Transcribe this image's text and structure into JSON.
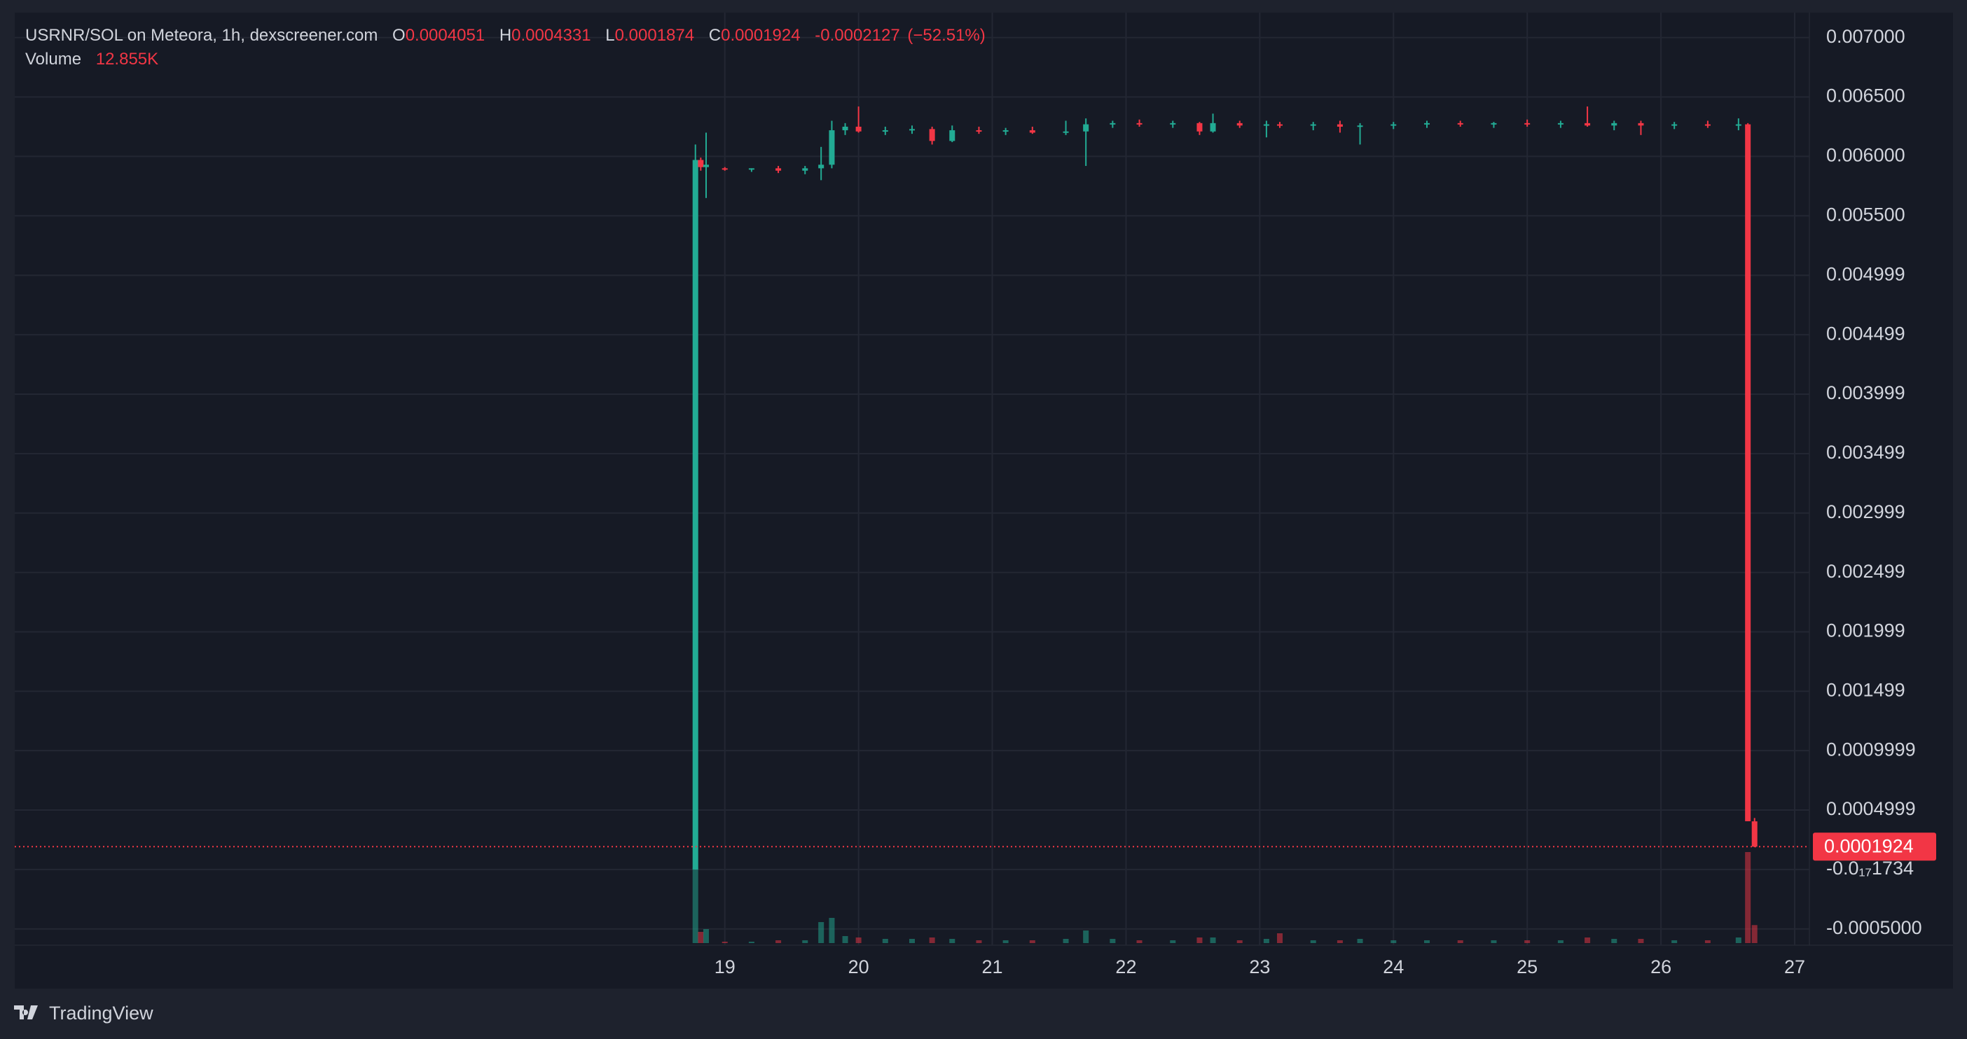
{
  "header": {
    "title": "USRNR/SOL on Meteora, 1h, dexscreener.com",
    "o_label": "O",
    "open": "0.0004051",
    "h_label": "H",
    "high": "0.0004331",
    "l_label": "L",
    "low": "0.0001874",
    "c_label": "C",
    "close": "0.0001924",
    "change": "-0.0002127",
    "change_pct": "(−52.51%)",
    "volume_label": "Volume",
    "volume": "12.855K"
  },
  "footer": {
    "brand": "TradingView"
  },
  "chart_data": {
    "type": "candlestick",
    "up_color": "#22ab94",
    "down_color": "#f23645",
    "x": [
      18.78,
      18.82,
      18.86,
      19.0,
      19.2,
      19.4,
      19.6,
      19.72,
      19.8,
      19.9,
      20.0,
      20.2,
      20.4,
      20.55,
      20.7,
      20.9,
      21.1,
      21.3,
      21.55,
      21.7,
      21.9,
      22.1,
      22.35,
      22.55,
      22.65,
      22.85,
      23.05,
      23.15,
      23.4,
      23.6,
      23.75,
      24.0,
      24.25,
      24.5,
      24.75,
      25.0,
      25.25,
      25.45,
      25.65,
      25.85,
      26.1,
      26.35,
      26.58,
      26.65,
      26.7
    ],
    "open": [
      0.0,
      0.00597,
      0.00591,
      0.0059,
      0.00589,
      0.0059,
      0.00588,
      0.0059,
      0.00593,
      0.00622,
      0.00625,
      0.00621,
      0.00622,
      0.00623,
      0.00613,
      0.00622,
      0.00621,
      0.00622,
      0.0062,
      0.00621,
      0.00627,
      0.00628,
      0.00627,
      0.00628,
      0.00621,
      0.00628,
      0.00626,
      0.00627,
      0.00626,
      0.00627,
      0.00625,
      0.00626,
      0.00627,
      0.00628,
      0.00627,
      0.00628,
      0.00627,
      0.00628,
      0.00626,
      0.00628,
      0.00626,
      0.00627,
      0.00626,
      0.00627,
      0.0004051
    ],
    "high": [
      0.0061,
      0.00599,
      0.0062,
      0.00591,
      0.0059,
      0.00592,
      0.00592,
      0.00608,
      0.0063,
      0.00628,
      0.00642,
      0.00625,
      0.00626,
      0.00625,
      0.00626,
      0.00625,
      0.00624,
      0.00625,
      0.0063,
      0.00632,
      0.0063,
      0.00631,
      0.0063,
      0.00629,
      0.00636,
      0.0063,
      0.0063,
      0.00629,
      0.00629,
      0.0063,
      0.00628,
      0.00629,
      0.0063,
      0.0063,
      0.00629,
      0.00631,
      0.0063,
      0.00642,
      0.0063,
      0.0063,
      0.00629,
      0.0063,
      0.00632,
      0.00628,
      0.0004331
    ],
    "low": [
      0.0,
      0.00588,
      0.00565,
      0.00588,
      0.00587,
      0.00586,
      0.00585,
      0.0058,
      0.0059,
      0.00618,
      0.0062,
      0.00618,
      0.00619,
      0.0061,
      0.00612,
      0.00619,
      0.00618,
      0.00619,
      0.00618,
      0.00592,
      0.00624,
      0.00625,
      0.00624,
      0.00618,
      0.0062,
      0.00624,
      0.00616,
      0.00624,
      0.00622,
      0.0062,
      0.0061,
      0.00623,
      0.00624,
      0.00625,
      0.00624,
      0.00625,
      0.00624,
      0.00625,
      0.00622,
      0.00618,
      0.00623,
      0.00624,
      0.00622,
      0.000406,
      0.0001874
    ],
    "close": [
      0.00597,
      0.00591,
      0.00593,
      0.00589,
      0.0059,
      0.00588,
      0.0059,
      0.00593,
      0.00622,
      0.00625,
      0.00621,
      0.00622,
      0.00623,
      0.00613,
      0.00622,
      0.00621,
      0.00622,
      0.0062,
      0.00621,
      0.00627,
      0.00628,
      0.00627,
      0.00628,
      0.00621,
      0.00628,
      0.00626,
      0.00627,
      0.00626,
      0.00627,
      0.00625,
      0.00626,
      0.00627,
      0.00628,
      0.00627,
      0.00628,
      0.00627,
      0.00628,
      0.00626,
      0.00628,
      0.00626,
      0.00627,
      0.00626,
      0.00627,
      0.000406,
      0.0001924
    ],
    "volume": [
      54,
      8,
      10,
      1,
      1,
      2,
      2,
      15,
      18,
      5,
      4,
      3,
      3,
      4,
      3,
      2,
      2,
      2,
      3,
      9,
      3,
      2,
      2,
      4,
      4,
      2,
      3,
      7,
      2,
      2,
      3,
      2,
      2,
      2,
      2,
      2,
      2,
      4,
      3,
      3,
      2,
      2,
      4,
      65,
      12.855
    ],
    "vlim": [
      0,
      100
    ],
    "xlim": [
      13.69,
      27.11
    ],
    "xticks": [
      19,
      20,
      21,
      22,
      23,
      24,
      25,
      26,
      27
    ],
    "ylim": [
      -0.000637,
      0.00721
    ],
    "yticks": [
      {
        "value": 0.007,
        "label": "0.007000"
      },
      {
        "value": 0.0065,
        "label": "0.006500"
      },
      {
        "value": 0.006,
        "label": "0.006000"
      },
      {
        "value": 0.0055,
        "label": "0.005500"
      },
      {
        "value": 0.004999,
        "label": "0.004999"
      },
      {
        "value": 0.004499,
        "label": "0.004499"
      },
      {
        "value": 0.003999,
        "label": "0.003999"
      },
      {
        "value": 0.003499,
        "label": "0.003499"
      },
      {
        "value": 0.002999,
        "label": "0.002999"
      },
      {
        "value": 0.002499,
        "label": "0.002499"
      },
      {
        "value": 0.001999,
        "label": "0.001999"
      },
      {
        "value": 0.001499,
        "label": "0.001499"
      },
      {
        "value": 0.0009999,
        "label": "0.0009999"
      },
      {
        "value": 0.0004999,
        "label": "0.0004999"
      },
      {
        "value": -1.734e-18,
        "label": "-0.0₁₇1734"
      },
      {
        "value": -0.0005,
        "label": "-0.0005000"
      }
    ],
    "last_price": {
      "value": 0.0001924,
      "label": "0.0001924"
    },
    "grid": true
  }
}
